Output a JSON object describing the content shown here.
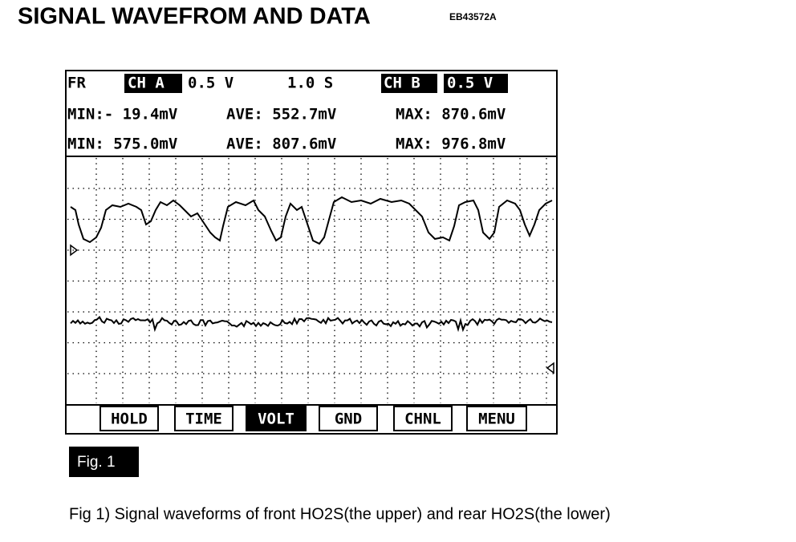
{
  "header": {
    "title": "SIGNAL WAVEFROM AND DATA",
    "code": "EB43572A"
  },
  "screen": {
    "row1": {
      "fr": "FR",
      "ch_a": "CH A",
      "ch_a_scale": "0.5 V",
      "time_scale": "1.0 S",
      "ch_b": "CH B",
      "ch_b_scale": "0.5 V"
    },
    "row2": {
      "min": "MIN:- 19.4mV",
      "ave": "AVE: 552.7mV",
      "max": "MAX: 870.6mV"
    },
    "row3": {
      "min": "MIN: 575.0mV",
      "ave": "AVE: 807.6mV",
      "max": "MAX: 976.8mV"
    },
    "buttons": [
      "HOLD",
      "TIME",
      "VOLT",
      "GND",
      "CHNL",
      "MENU"
    ]
  },
  "figure": {
    "label": "Fig. 1",
    "caption": "Fig 1) Signal waveforms of front HO2S(the upper) and rear HO2S(the lower)"
  }
}
